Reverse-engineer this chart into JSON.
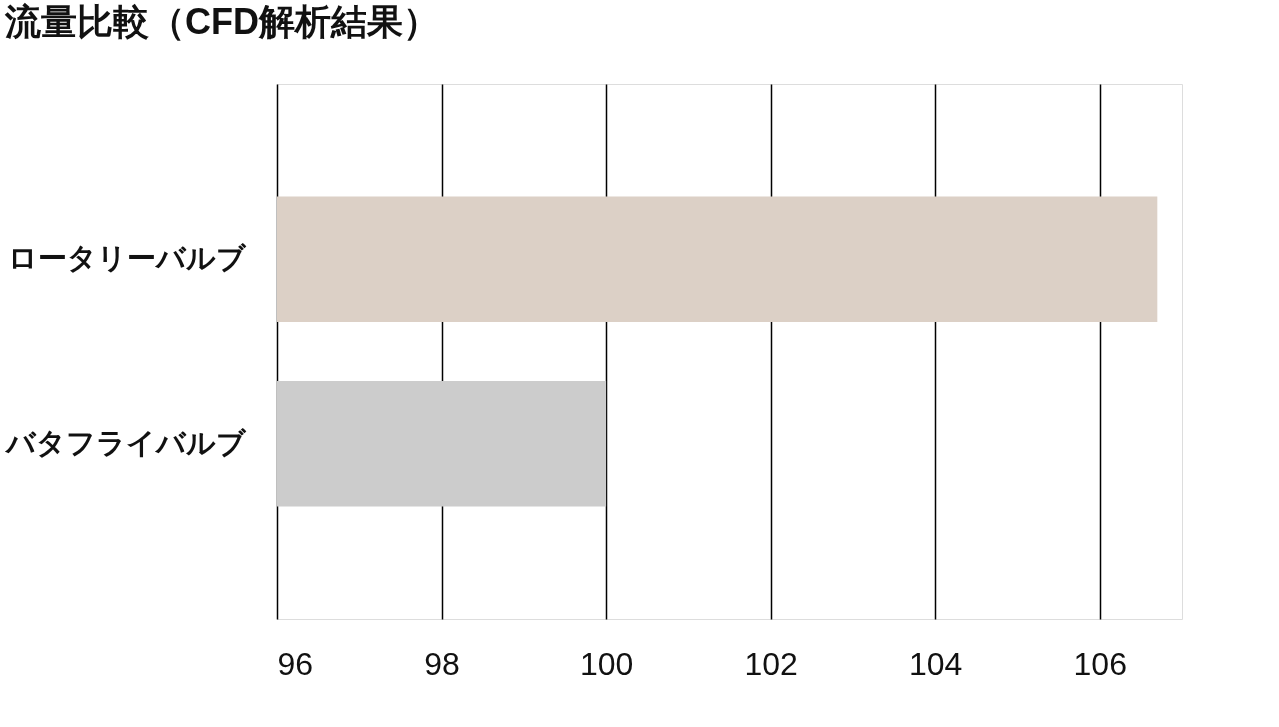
{
  "chart_data": {
    "type": "bar",
    "orientation": "horizontal",
    "title": "流量比較（CFD解析結果）",
    "categories": [
      "ロータリーバルブ",
      "バタフライバルブ"
    ],
    "values": [
      106.7,
      100
    ],
    "colors": [
      "#dcd0c6",
      "#cccccc"
    ],
    "xlim": [
      96,
      107
    ],
    "xticks": [
      96,
      98,
      100,
      102,
      104,
      106
    ],
    "grid": "x"
  }
}
